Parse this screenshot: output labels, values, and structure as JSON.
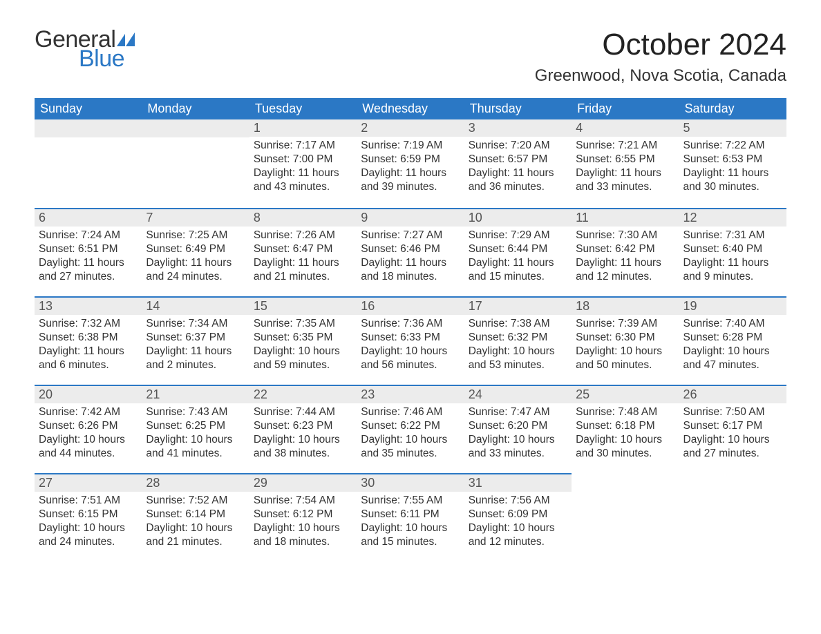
{
  "brand": {
    "word1": "General",
    "word2": "Blue",
    "icon_color": "#2b78c5",
    "text_color_dark": "#333333",
    "text_color_accent": "#2b78c5"
  },
  "title": "October 2024",
  "location": "Greenwood, Nova Scotia, Canada",
  "colors": {
    "header_bg": "#2b78c5",
    "header_text": "#ffffff",
    "daynum_bg": "#ececec",
    "row_divider": "#2b78c5",
    "body_text": "#333333",
    "page_bg": "#ffffff"
  },
  "fonts": {
    "title_size_pt": 33,
    "location_size_pt": 18,
    "header_size_pt": 14,
    "body_size_pt": 12
  },
  "weekdays": [
    "Sunday",
    "Monday",
    "Tuesday",
    "Wednesday",
    "Thursday",
    "Friday",
    "Saturday"
  ],
  "weeks": [
    [
      null,
      null,
      {
        "n": "1",
        "sunrise": "Sunrise: 7:17 AM",
        "sunset": "Sunset: 7:00 PM",
        "dl1": "Daylight: 11 hours",
        "dl2": "and 43 minutes."
      },
      {
        "n": "2",
        "sunrise": "Sunrise: 7:19 AM",
        "sunset": "Sunset: 6:59 PM",
        "dl1": "Daylight: 11 hours",
        "dl2": "and 39 minutes."
      },
      {
        "n": "3",
        "sunrise": "Sunrise: 7:20 AM",
        "sunset": "Sunset: 6:57 PM",
        "dl1": "Daylight: 11 hours",
        "dl2": "and 36 minutes."
      },
      {
        "n": "4",
        "sunrise": "Sunrise: 7:21 AM",
        "sunset": "Sunset: 6:55 PM",
        "dl1": "Daylight: 11 hours",
        "dl2": "and 33 minutes."
      },
      {
        "n": "5",
        "sunrise": "Sunrise: 7:22 AM",
        "sunset": "Sunset: 6:53 PM",
        "dl1": "Daylight: 11 hours",
        "dl2": "and 30 minutes."
      }
    ],
    [
      {
        "n": "6",
        "sunrise": "Sunrise: 7:24 AM",
        "sunset": "Sunset: 6:51 PM",
        "dl1": "Daylight: 11 hours",
        "dl2": "and 27 minutes."
      },
      {
        "n": "7",
        "sunrise": "Sunrise: 7:25 AM",
        "sunset": "Sunset: 6:49 PM",
        "dl1": "Daylight: 11 hours",
        "dl2": "and 24 minutes."
      },
      {
        "n": "8",
        "sunrise": "Sunrise: 7:26 AM",
        "sunset": "Sunset: 6:47 PM",
        "dl1": "Daylight: 11 hours",
        "dl2": "and 21 minutes."
      },
      {
        "n": "9",
        "sunrise": "Sunrise: 7:27 AM",
        "sunset": "Sunset: 6:46 PM",
        "dl1": "Daylight: 11 hours",
        "dl2": "and 18 minutes."
      },
      {
        "n": "10",
        "sunrise": "Sunrise: 7:29 AM",
        "sunset": "Sunset: 6:44 PM",
        "dl1": "Daylight: 11 hours",
        "dl2": "and 15 minutes."
      },
      {
        "n": "11",
        "sunrise": "Sunrise: 7:30 AM",
        "sunset": "Sunset: 6:42 PM",
        "dl1": "Daylight: 11 hours",
        "dl2": "and 12 minutes."
      },
      {
        "n": "12",
        "sunrise": "Sunrise: 7:31 AM",
        "sunset": "Sunset: 6:40 PM",
        "dl1": "Daylight: 11 hours",
        "dl2": "and 9 minutes."
      }
    ],
    [
      {
        "n": "13",
        "sunrise": "Sunrise: 7:32 AM",
        "sunset": "Sunset: 6:38 PM",
        "dl1": "Daylight: 11 hours",
        "dl2": "and 6 minutes."
      },
      {
        "n": "14",
        "sunrise": "Sunrise: 7:34 AM",
        "sunset": "Sunset: 6:37 PM",
        "dl1": "Daylight: 11 hours",
        "dl2": "and 2 minutes."
      },
      {
        "n": "15",
        "sunrise": "Sunrise: 7:35 AM",
        "sunset": "Sunset: 6:35 PM",
        "dl1": "Daylight: 10 hours",
        "dl2": "and 59 minutes."
      },
      {
        "n": "16",
        "sunrise": "Sunrise: 7:36 AM",
        "sunset": "Sunset: 6:33 PM",
        "dl1": "Daylight: 10 hours",
        "dl2": "and 56 minutes."
      },
      {
        "n": "17",
        "sunrise": "Sunrise: 7:38 AM",
        "sunset": "Sunset: 6:32 PM",
        "dl1": "Daylight: 10 hours",
        "dl2": "and 53 minutes."
      },
      {
        "n": "18",
        "sunrise": "Sunrise: 7:39 AM",
        "sunset": "Sunset: 6:30 PM",
        "dl1": "Daylight: 10 hours",
        "dl2": "and 50 minutes."
      },
      {
        "n": "19",
        "sunrise": "Sunrise: 7:40 AM",
        "sunset": "Sunset: 6:28 PM",
        "dl1": "Daylight: 10 hours",
        "dl2": "and 47 minutes."
      }
    ],
    [
      {
        "n": "20",
        "sunrise": "Sunrise: 7:42 AM",
        "sunset": "Sunset: 6:26 PM",
        "dl1": "Daylight: 10 hours",
        "dl2": "and 44 minutes."
      },
      {
        "n": "21",
        "sunrise": "Sunrise: 7:43 AM",
        "sunset": "Sunset: 6:25 PM",
        "dl1": "Daylight: 10 hours",
        "dl2": "and 41 minutes."
      },
      {
        "n": "22",
        "sunrise": "Sunrise: 7:44 AM",
        "sunset": "Sunset: 6:23 PM",
        "dl1": "Daylight: 10 hours",
        "dl2": "and 38 minutes."
      },
      {
        "n": "23",
        "sunrise": "Sunrise: 7:46 AM",
        "sunset": "Sunset: 6:22 PM",
        "dl1": "Daylight: 10 hours",
        "dl2": "and 35 minutes."
      },
      {
        "n": "24",
        "sunrise": "Sunrise: 7:47 AM",
        "sunset": "Sunset: 6:20 PM",
        "dl1": "Daylight: 10 hours",
        "dl2": "and 33 minutes."
      },
      {
        "n": "25",
        "sunrise": "Sunrise: 7:48 AM",
        "sunset": "Sunset: 6:18 PM",
        "dl1": "Daylight: 10 hours",
        "dl2": "and 30 minutes."
      },
      {
        "n": "26",
        "sunrise": "Sunrise: 7:50 AM",
        "sunset": "Sunset: 6:17 PM",
        "dl1": "Daylight: 10 hours",
        "dl2": "and 27 minutes."
      }
    ],
    [
      {
        "n": "27",
        "sunrise": "Sunrise: 7:51 AM",
        "sunset": "Sunset: 6:15 PM",
        "dl1": "Daylight: 10 hours",
        "dl2": "and 24 minutes."
      },
      {
        "n": "28",
        "sunrise": "Sunrise: 7:52 AM",
        "sunset": "Sunset: 6:14 PM",
        "dl1": "Daylight: 10 hours",
        "dl2": "and 21 minutes."
      },
      {
        "n": "29",
        "sunrise": "Sunrise: 7:54 AM",
        "sunset": "Sunset: 6:12 PM",
        "dl1": "Daylight: 10 hours",
        "dl2": "and 18 minutes."
      },
      {
        "n": "30",
        "sunrise": "Sunrise: 7:55 AM",
        "sunset": "Sunset: 6:11 PM",
        "dl1": "Daylight: 10 hours",
        "dl2": "and 15 minutes."
      },
      {
        "n": "31",
        "sunrise": "Sunrise: 7:56 AM",
        "sunset": "Sunset: 6:09 PM",
        "dl1": "Daylight: 10 hours",
        "dl2": "and 12 minutes."
      },
      null,
      null
    ]
  ]
}
